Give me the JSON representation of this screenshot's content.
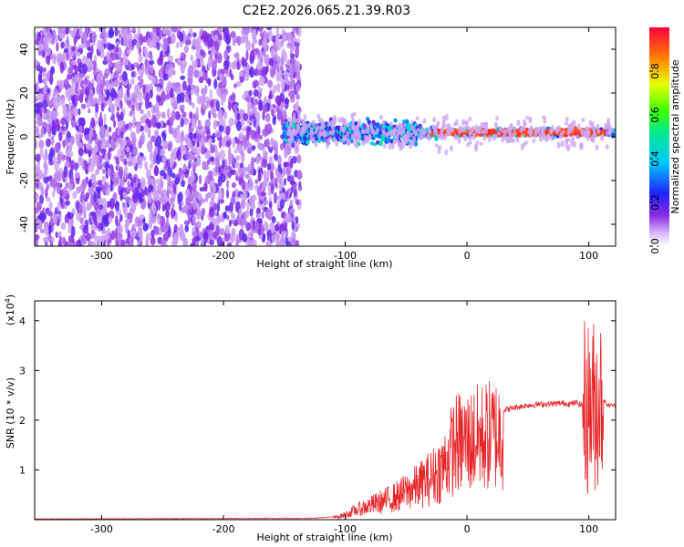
{
  "chart_data": [
    {
      "type": "heatmap",
      "title": "C2E2.2026.065.21.39.R03",
      "xlabel": "Height of straight line (km)",
      "ylabel": "Frequency (Hz)",
      "xlim": [
        -355,
        122
      ],
      "ylim": [
        -50,
        50
      ],
      "xticks": [
        -300,
        -200,
        -100,
        0,
        100
      ],
      "xtick_labels": [
        "-300",
        "-200",
        "-100",
        "0",
        "100"
      ],
      "yticks": [
        -40,
        -20,
        0,
        20,
        40
      ],
      "ytick_labels": [
        "-40",
        "-20",
        "0",
        "20",
        "40"
      ],
      "colorbar": {
        "label": "Normalized spectral amplitude",
        "range": [
          0,
          1
        ],
        "ticks": [
          0.0,
          0.2,
          0.4,
          0.6,
          0.8
        ],
        "tick_labels": [
          "0.0",
          "0.2",
          "0.4",
          "0.6",
          "0.8"
        ]
      },
      "grid": false,
      "features": {
        "noise_region_x": [
          -355,
          -145
        ],
        "signal_band_center_hz": 2,
        "strong_signal_x": [
          -30,
          115
        ]
      }
    },
    {
      "type": "line",
      "xlabel": "Height of straight line (km)",
      "ylabel": "SNR (10 * v/v)",
      "y_multiplier_label": "(x10",
      "y_multiplier_exp": "4",
      "xlim": [
        -355,
        122
      ],
      "ylim": [
        0,
        4.4
      ],
      "xticks": [
        -300,
        -200,
        -100,
        0,
        100
      ],
      "xtick_labels": [
        "-300",
        "-200",
        "-100",
        "0",
        "100"
      ],
      "yticks": [
        1,
        2,
        3,
        4
      ],
      "ytick_labels": [
        "1",
        "2",
        "3",
        "4"
      ],
      "grid": false,
      "series": [
        {
          "color": "#e8262a",
          "envelope_x": [
            -355,
            -130,
            -110,
            -100,
            -90,
            -80,
            -70,
            -60,
            -50,
            -40,
            -30,
            -20,
            -15,
            -10,
            0,
            10,
            20,
            30,
            40,
            50,
            60,
            70,
            80,
            85,
            90,
            95,
            100,
            105,
            110,
            115,
            122
          ],
          "envelope_y": [
            0.01,
            0.02,
            0.05,
            0.12,
            0.25,
            0.35,
            0.45,
            0.55,
            0.7,
            0.85,
            1.05,
            1.3,
            1.6,
            1.9,
            1.95,
            2.05,
            2.12,
            2.2,
            2.26,
            2.3,
            2.32,
            2.33,
            2.34,
            2.33,
            2.35,
            2.3,
            2.25,
            2.3,
            2.5,
            2.3,
            2.3
          ]
        }
      ]
    }
  ]
}
